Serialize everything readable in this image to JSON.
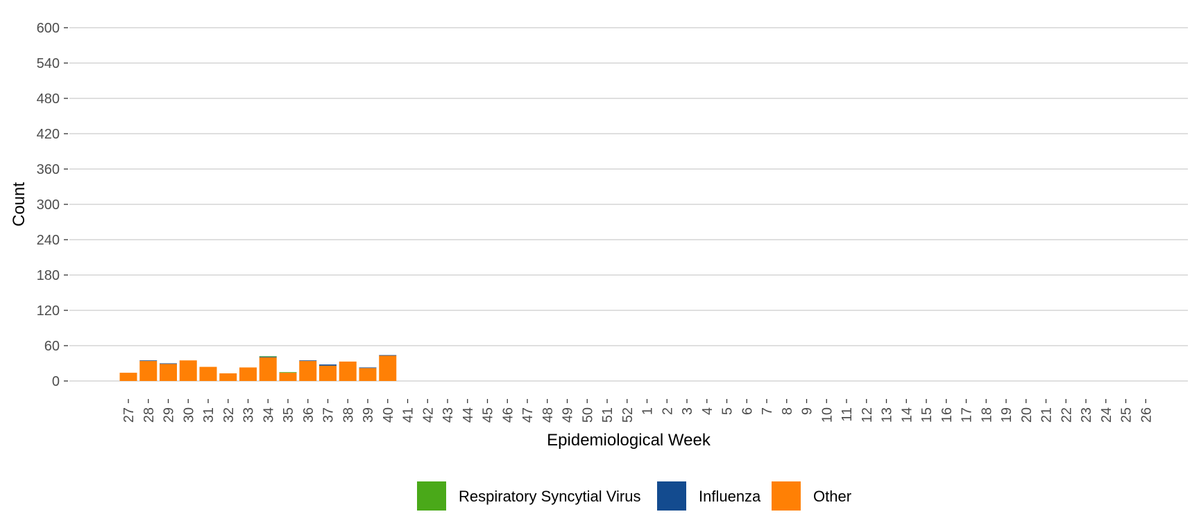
{
  "chart_data": {
    "type": "bar",
    "stacked": true,
    "xlabel": "Epidemiological Week",
    "ylabel": "Count",
    "ylim": [
      0,
      600
    ],
    "yticks": [
      0,
      60,
      120,
      180,
      240,
      300,
      360,
      420,
      480,
      540,
      600
    ],
    "grid": "horizontal",
    "legend_position": "bottom",
    "categories": [
      "27",
      "28",
      "29",
      "30",
      "31",
      "32",
      "33",
      "34",
      "35",
      "36",
      "37",
      "38",
      "39",
      "40",
      "41",
      "42",
      "43",
      "44",
      "45",
      "46",
      "47",
      "48",
      "49",
      "50",
      "51",
      "52",
      "1",
      "2",
      "3",
      "4",
      "5",
      "6",
      "7",
      "8",
      "9",
      "10",
      "11",
      "12",
      "13",
      "14",
      "15",
      "16",
      "17",
      "18",
      "19",
      "20",
      "21",
      "22",
      "23",
      "24",
      "25",
      "26"
    ],
    "series": [
      {
        "name": "Respiratory Syncytial Virus",
        "color": "#4aa919",
        "values": [
          0,
          0,
          0,
          0,
          0,
          0,
          0,
          1,
          1,
          0,
          0,
          0,
          0,
          0,
          null,
          null,
          null,
          null,
          null,
          null,
          null,
          null,
          null,
          null,
          null,
          null,
          null,
          null,
          null,
          null,
          null,
          null,
          null,
          null,
          null,
          null,
          null,
          null,
          null,
          null,
          null,
          null,
          null,
          null,
          null,
          null,
          null,
          null,
          null,
          null,
          null,
          null
        ]
      },
      {
        "name": "Influenza",
        "color": "#134b8f",
        "values": [
          0,
          1,
          1,
          0,
          0,
          0,
          0,
          1,
          0,
          1,
          2,
          0,
          1,
          1,
          null,
          null,
          null,
          null,
          null,
          null,
          null,
          null,
          null,
          null,
          null,
          null,
          null,
          null,
          null,
          null,
          null,
          null,
          null,
          null,
          null,
          null,
          null,
          null,
          null,
          null,
          null,
          null,
          null,
          null,
          null,
          null,
          null,
          null,
          null,
          null,
          null,
          null
        ]
      },
      {
        "name": "Other",
        "color": "#ff8005",
        "values": [
          14,
          34,
          29,
          35,
          24,
          13,
          23,
          40,
          14,
          34,
          26,
          33,
          22,
          43,
          null,
          null,
          null,
          null,
          null,
          null,
          null,
          null,
          null,
          null,
          null,
          null,
          null,
          null,
          null,
          null,
          null,
          null,
          null,
          null,
          null,
          null,
          null,
          null,
          null,
          null,
          null,
          null,
          null,
          null,
          null,
          null,
          null,
          null,
          null,
          null,
          null,
          null
        ]
      }
    ]
  }
}
